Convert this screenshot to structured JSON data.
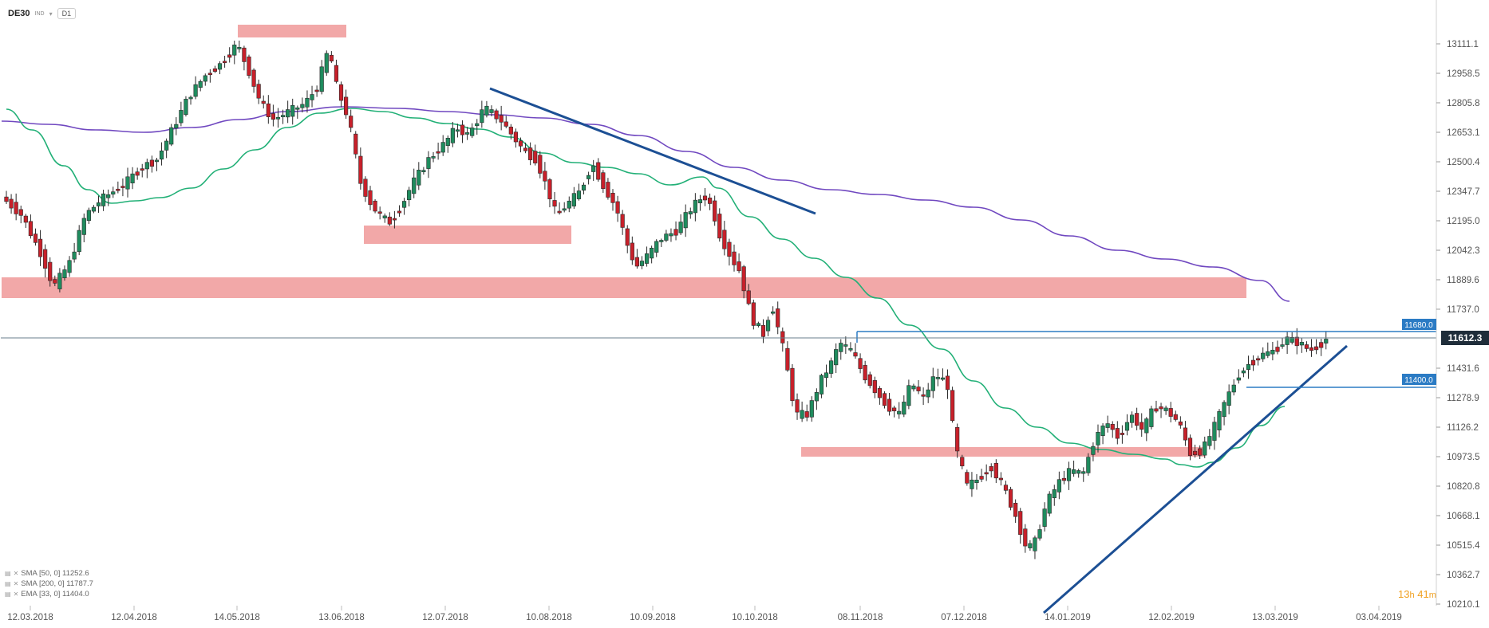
{
  "header": {
    "symbol": "DE30",
    "market": "IND",
    "timeframe": "D1"
  },
  "countdown": {
    "hours": "13",
    "h_unit": "h",
    "minutes": "41",
    "m_unit": "m"
  },
  "indicators": [
    {
      "label": "SMA [50, 0] 11252.6",
      "icon": "line-chart-icon",
      "remove": "close-icon"
    },
    {
      "label": "SMA [200, 0] 11787.7",
      "icon": "line-chart-icon",
      "remove": "close-icon"
    },
    {
      "label": "EMA [33, 0] 11404.0",
      "icon": "line-chart-icon",
      "remove": "close-icon"
    }
  ],
  "chart_data": {
    "type": "candlestick",
    "grid": false,
    "y_ticks": [
      "13111.1",
      "12958.5",
      "12805.8",
      "12653.1",
      "12500.4",
      "12347.7",
      "12195.0",
      "12042.3",
      "11889.6",
      "11737.0",
      "11431.6",
      "11278.9",
      "11126.2",
      "10973.5",
      "10820.8",
      "10668.1",
      "10515.4",
      "10362.7",
      "10210.1"
    ],
    "x_ticks": [
      "12.03.2018",
      "12.04.2018",
      "14.05.2018",
      "13.06.2018",
      "12.07.2018",
      "10.08.2018",
      "10.09.2018",
      "10.10.2018",
      "08.11.2018",
      "07.12.2018",
      "14.01.2019",
      "12.02.2019",
      "13.03.2019",
      "03.04.2019"
    ],
    "current_price": "11612.3",
    "level_labels": [
      "11680.0",
      "11400.0"
    ],
    "colors": {
      "up": "#1f8c5e",
      "down": "#c8202a",
      "sma50": "#22b077",
      "sma200": "#7048c0",
      "trend": "#1c4f94",
      "zone": "#f1a3a3",
      "level": "#2b7bc4"
    }
  }
}
